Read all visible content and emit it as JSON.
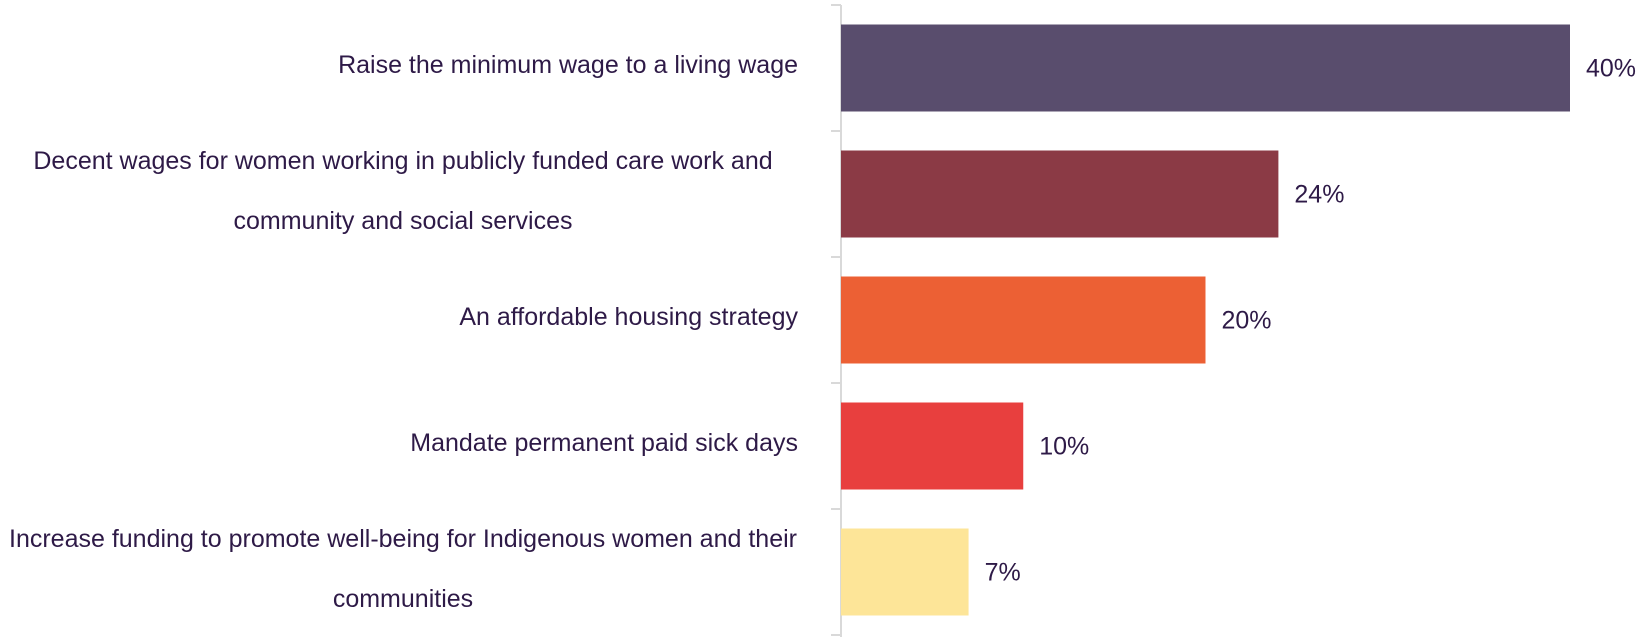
{
  "chart_data": {
    "type": "hbar",
    "categories": [
      "Raise the minimum wage to a living wage",
      "Decent wages for women working in publicly funded care work and community and social services",
      "An affordable housing strategy",
      "Mandate permanent paid sick days",
      "Increase funding to promote well-being for Indigenous women and their communities"
    ],
    "values": [
      40,
      24,
      20,
      10,
      7
    ],
    "value_labels": [
      "40%",
      "24%",
      "20%",
      "10%",
      "7%"
    ],
    "colors": [
      "#594d6d",
      "#8b3a45",
      "#ec6034",
      "#e83f3e",
      "#fde598"
    ],
    "xlim": [
      0,
      40
    ]
  }
}
